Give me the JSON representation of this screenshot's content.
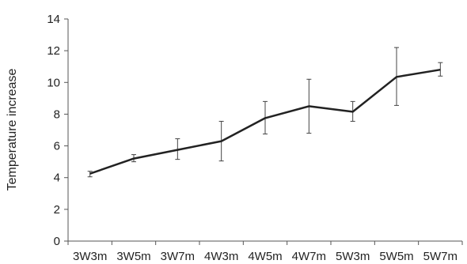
{
  "chart_data": {
    "type": "line",
    "title": "",
    "xlabel": "",
    "ylabel": "Temperature increase",
    "categories": [
      "3W3m",
      "3W5m",
      "3W7m",
      "4W3m",
      "4W5m",
      "4W7m",
      "5W3m",
      "5W5m",
      "5W7m"
    ],
    "series": [
      {
        "values": [
          4.25,
          5.2,
          5.75,
          6.3,
          7.75,
          8.5,
          8.15,
          10.35,
          10.8
        ],
        "error_low": [
          4.05,
          5.0,
          5.15,
          5.05,
          6.75,
          6.8,
          7.55,
          8.55,
          10.4
        ],
        "error_high": [
          4.4,
          5.45,
          6.45,
          7.55,
          8.8,
          10.2,
          8.8,
          12.2,
          11.25
        ]
      }
    ],
    "ylim": [
      0,
      14
    ],
    "yticks": [
      0,
      2,
      4,
      6,
      8,
      10,
      12,
      14
    ],
    "grid": false,
    "legend": "none",
    "line_color": "#222222",
    "axis_color": "#555555"
  }
}
